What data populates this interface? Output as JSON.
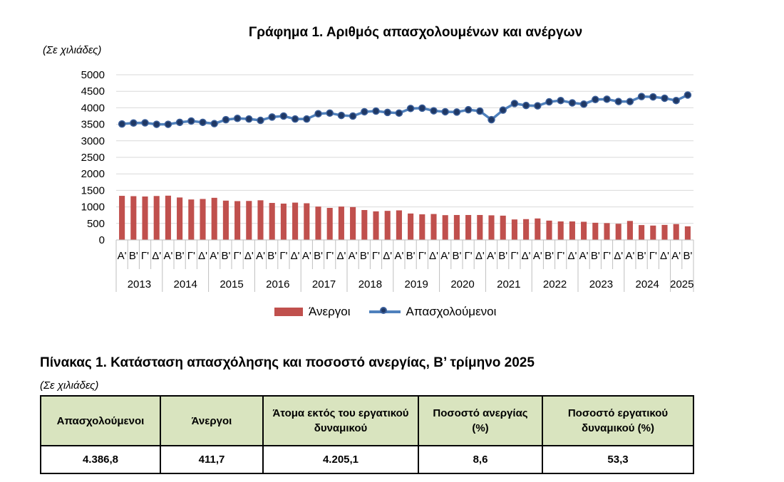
{
  "chart_data": {
    "type": "bar+line",
    "title": "Γράφημα 1. Αριθμός απασχολουμένων και ανέργων",
    "unit_note": "(Σε χιλιάδες)",
    "ylim": [
      0,
      5000
    ],
    "yticks": [
      0,
      500,
      1000,
      1500,
      2000,
      2500,
      3000,
      3500,
      4000,
      4500,
      5000
    ],
    "grid": true,
    "legend_position": "bottom",
    "quarter_labels": [
      "Α'",
      "Β'",
      "Γ'",
      "Δ'",
      "Α'",
      "Β'",
      "Γ'",
      "Δ'",
      "Α'",
      "Β'",
      "Γ'",
      "Δ'",
      "Α'",
      "Β'",
      "Γ'",
      "Δ'",
      "Α'",
      "Β'",
      "Γ'",
      "Δ'",
      "Α'",
      "Β'",
      "Γ'",
      "Δ'",
      "Α'",
      "Β'",
      "Γ'",
      "Δ'",
      "Α'",
      "Β'",
      "Γ'",
      "Δ'",
      "Α'",
      "Β'",
      "Γ'",
      "Δ'",
      "Α'",
      "Β'",
      "Γ'",
      "Δ'",
      "Α'",
      "Β'",
      "Γ'",
      "Δ'",
      "Α'",
      "Β'",
      "Γ'",
      "Δ'",
      "Α'",
      "Β'"
    ],
    "years": [
      "2013",
      "2014",
      "2015",
      "2016",
      "2017",
      "2018",
      "2019",
      "2020",
      "2021",
      "2022",
      "2023",
      "2024",
      "2025"
    ],
    "series": [
      {
        "name": "Άνεργοι",
        "type": "bar",
        "color": "#c0504d",
        "values": [
          1335,
          1325,
          1315,
          1330,
          1340,
          1285,
          1225,
          1240,
          1275,
          1190,
          1175,
          1180,
          1200,
          1120,
          1100,
          1130,
          1110,
          1010,
          970,
          1010,
          995,
          905,
          865,
          880,
          895,
          800,
          775,
          785,
          750,
          755,
          755,
          755,
          745,
          735,
          620,
          630,
          650,
          585,
          560,
          560,
          550,
          520,
          510,
          490,
          575,
          450,
          435,
          455,
          480,
          412
        ]
      },
      {
        "name": "Απασχολούμενοι",
        "type": "line",
        "color": "#4f81bd",
        "values": [
          3510,
          3540,
          3545,
          3500,
          3500,
          3560,
          3600,
          3560,
          3520,
          3640,
          3680,
          3660,
          3620,
          3720,
          3750,
          3660,
          3660,
          3820,
          3840,
          3770,
          3750,
          3880,
          3900,
          3860,
          3840,
          3980,
          3990,
          3910,
          3880,
          3870,
          3940,
          3900,
          3640,
          3930,
          4130,
          4070,
          4060,
          4180,
          4220,
          4150,
          4110,
          4250,
          4260,
          4190,
          4190,
          4340,
          4330,
          4290,
          4220,
          4387
        ]
      }
    ]
  },
  "table": {
    "title": "Πίνακας 1. Κατάσταση απασχόλησης και ποσοστό ανεργίας, Β’ τρίμηνο 2025",
    "unit_note": "(Σε χιλιάδες)",
    "header_color": "#d9e4bf",
    "headers": [
      "Απασχολούμενοι",
      "Άνεργοι",
      "Άτομα εκτός του εργατικού δυναμικού",
      "Ποσοστό ανεργίας (%)",
      "Ποσοστό εργατικού δυναμικού (%)"
    ],
    "values": [
      "4.386,8",
      "411,7",
      "4.205,1",
      "8,6",
      "53,3"
    ]
  }
}
